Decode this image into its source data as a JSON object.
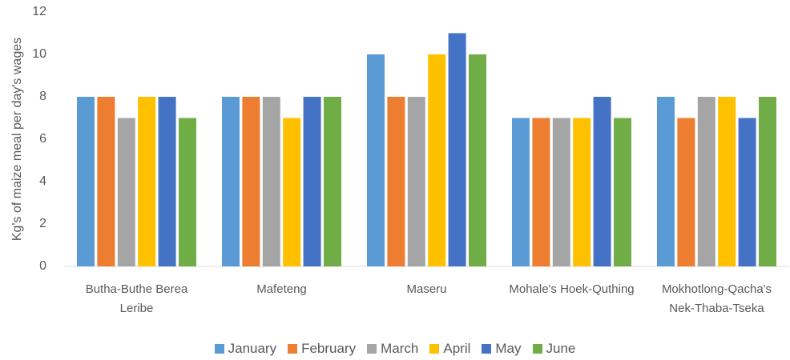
{
  "chart_data": {
    "type": "bar",
    "y_label": "Kg's of maize meal per day's wages",
    "categories": [
      "Butha-Buthe Berea Leribe",
      "Mafeteng",
      "Maseru",
      "Mohale's Hoek-Quthing",
      "Mokhotlong-Qacha's Nek-Thaba-Tseka"
    ],
    "series": [
      {
        "name": "January",
        "color": "#5b9bd5",
        "values": [
          8,
          8,
          10,
          7,
          8
        ]
      },
      {
        "name": "February",
        "color": "#ed7d31",
        "values": [
          8,
          8,
          8,
          7,
          7
        ]
      },
      {
        "name": "March",
        "color": "#a5a5a5",
        "values": [
          7,
          8,
          8,
          7,
          8
        ]
      },
      {
        "name": "April",
        "color": "#ffc000",
        "values": [
          8,
          7,
          10,
          7,
          8
        ]
      },
      {
        "name": "May",
        "color": "#4472c4",
        "values": [
          8,
          8,
          11,
          8,
          7
        ]
      },
      {
        "name": "June",
        "color": "#70ad47",
        "values": [
          7,
          8,
          10,
          7,
          8
        ]
      }
    ],
    "ylim": [
      0,
      12
    ],
    "yticks": [
      0,
      2,
      4,
      6,
      8,
      10,
      12
    ],
    "grid": false,
    "legend": "bottom"
  }
}
